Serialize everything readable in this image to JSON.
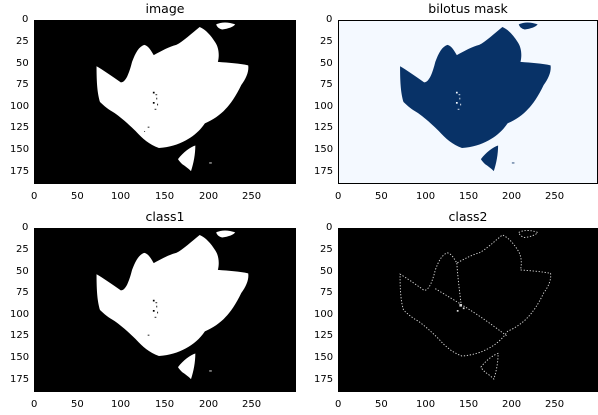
{
  "figure": {
    "panels": [
      {
        "id": "image",
        "title": "image",
        "kind": "binary",
        "background": "#000000",
        "foreground": "#ffffff",
        "xticks": [
          "0",
          "50",
          "100",
          "150",
          "200",
          "250"
        ],
        "yticks": [
          "0",
          "25",
          "50",
          "75",
          "100",
          "125",
          "150",
          "175"
        ]
      },
      {
        "id": "bilotus-mask",
        "title": "bilotus mask",
        "kind": "colormap",
        "background": "#f4f9ff",
        "foreground": "#083267",
        "xticks": [
          "0",
          "50",
          "100",
          "150",
          "200",
          "250"
        ],
        "yticks": [
          "0",
          "25",
          "50",
          "75",
          "100",
          "125",
          "150",
          "175"
        ]
      },
      {
        "id": "class1",
        "title": "class1",
        "kind": "binary",
        "background": "#000000",
        "foreground": "#ffffff",
        "xticks": [
          "0",
          "50",
          "100",
          "150",
          "200",
          "250"
        ],
        "yticks": [
          "0",
          "25",
          "50",
          "75",
          "100",
          "125",
          "150",
          "175"
        ]
      },
      {
        "id": "class2",
        "title": "class2",
        "kind": "edges",
        "background": "#000000",
        "foreground": "#d8d8d8",
        "xticks": [
          "0",
          "50",
          "100",
          "150",
          "200",
          "250"
        ],
        "yticks": [
          "0",
          "25",
          "50",
          "75",
          "100",
          "125",
          "150",
          "175"
        ]
      }
    ]
  }
}
